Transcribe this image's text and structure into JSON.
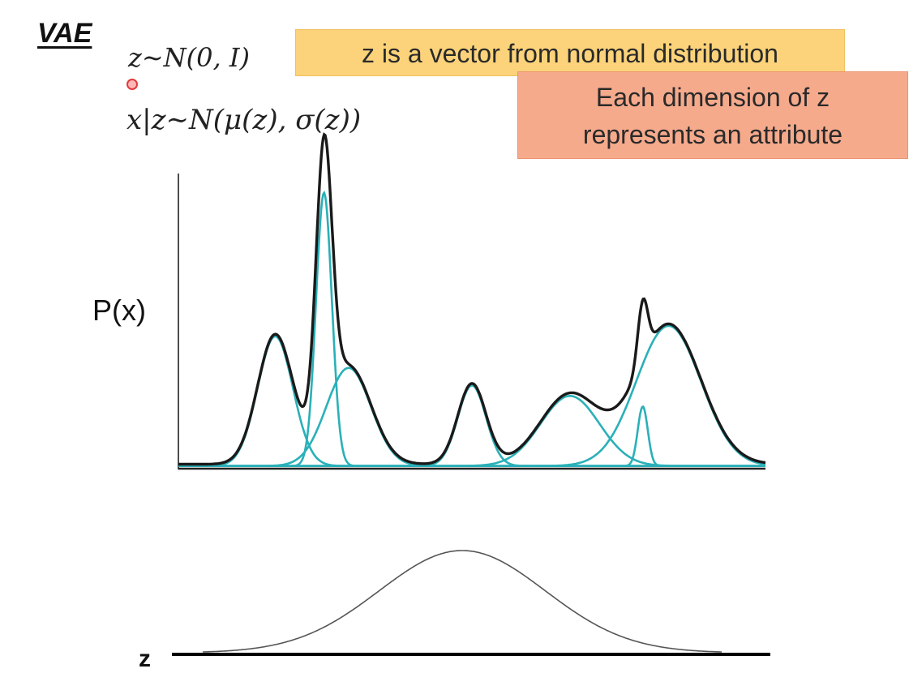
{
  "slide": {
    "title": "VAE",
    "formula_prior": "z∼N(0, I)",
    "formula_likelihood": "x|z∼N(μ(z), σ(z))",
    "callout_vector": "z is a vector from normal distribution",
    "callout_attribute_line1": "Each dimension of z",
    "callout_attribute_line2": "represents an attribute"
  },
  "plot_top": {
    "ylabel": "P(x)",
    "mixture_color": "#1a1a1a",
    "component_color": "#2ab0b8",
    "components": [
      {
        "mu": 0.165,
        "sigma": 0.03,
        "amp": 0.37
      },
      {
        "mu": 0.248,
        "sigma": 0.0135,
        "amp": 0.78
      },
      {
        "mu": 0.29,
        "sigma": 0.038,
        "amp": 0.28
      },
      {
        "mu": 0.5,
        "sigma": 0.024,
        "amp": 0.23
      },
      {
        "mu": 0.667,
        "sigma": 0.05,
        "amp": 0.2
      },
      {
        "mu": 0.791,
        "sigma": 0.0085,
        "amp": 0.17
      },
      {
        "mu": 0.835,
        "sigma": 0.055,
        "amp": 0.4
      }
    ]
  },
  "plot_bottom": {
    "zlabel": "z",
    "curve_color": "#555555",
    "mu": 0.5,
    "sigma": 0.16
  }
}
